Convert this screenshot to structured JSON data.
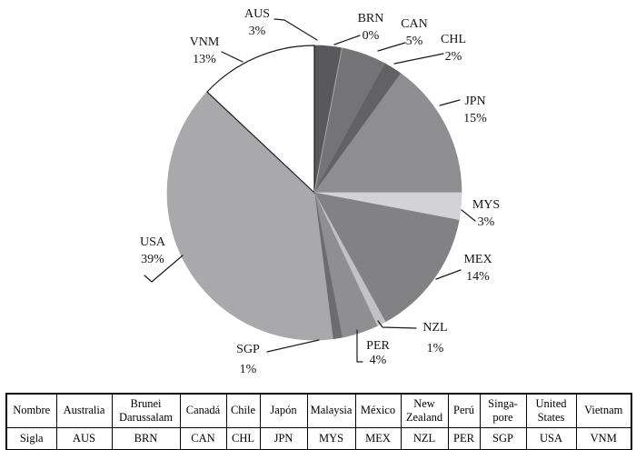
{
  "chart_data": {
    "type": "pie",
    "title": "",
    "start_angle_deg": -90,
    "direction": "clockwise",
    "unit": "%",
    "slices": [
      {
        "code": "AUS",
        "pct": 3,
        "pct_label": "3%",
        "color": "#59595b"
      },
      {
        "code": "BRN",
        "pct": 0,
        "pct_label": "0%",
        "color": "#a6a6a6"
      },
      {
        "code": "CAN",
        "pct": 5,
        "pct_label": "5%",
        "color": "#747476"
      },
      {
        "code": "CHL",
        "pct": 2,
        "pct_label": "2%",
        "color": "#626264"
      },
      {
        "code": "JPN",
        "pct": 15,
        "pct_label": "15%",
        "color": "#8e8e90"
      },
      {
        "code": "MYS",
        "pct": 3,
        "pct_label": "3%",
        "color": "#d3d3d5"
      },
      {
        "code": "MEX",
        "pct": 14,
        "pct_label": "14%",
        "color": "#828284"
      },
      {
        "code": "NZL",
        "pct": 1,
        "pct_label": "1%",
        "color": "#c2c2c4"
      },
      {
        "code": "PER",
        "pct": 4,
        "pct_label": "4%",
        "color": "#8f8f92"
      },
      {
        "code": "SGP",
        "pct": 1,
        "pct_label": "1%",
        "color": "#6c6c6e"
      },
      {
        "code": "USA",
        "pct": 39,
        "pct_label": "39%",
        "color": "#a9a9ab"
      },
      {
        "code": "VNM",
        "pct": 13,
        "pct_label": "13%",
        "color": "#ffffff",
        "stroke": "#1a1a1a"
      }
    ]
  },
  "table": {
    "header_row": {
      "label": "Nombre",
      "cells": [
        "Australia",
        "Brunei Darussalam",
        "Canadá",
        "Chile",
        "Japón",
        "Malaysia",
        "México",
        "New Zealand",
        "Perú",
        "Singa-pore",
        "United States",
        "Vietnam"
      ]
    },
    "sigla_row": {
      "label": "Sigla",
      "cells": [
        "AUS",
        "BRN",
        "CAN",
        "CHL",
        "JPN",
        "MYS",
        "MEX",
        "NZL",
        "PER",
        "SGP",
        "USA",
        "VNM"
      ]
    }
  }
}
